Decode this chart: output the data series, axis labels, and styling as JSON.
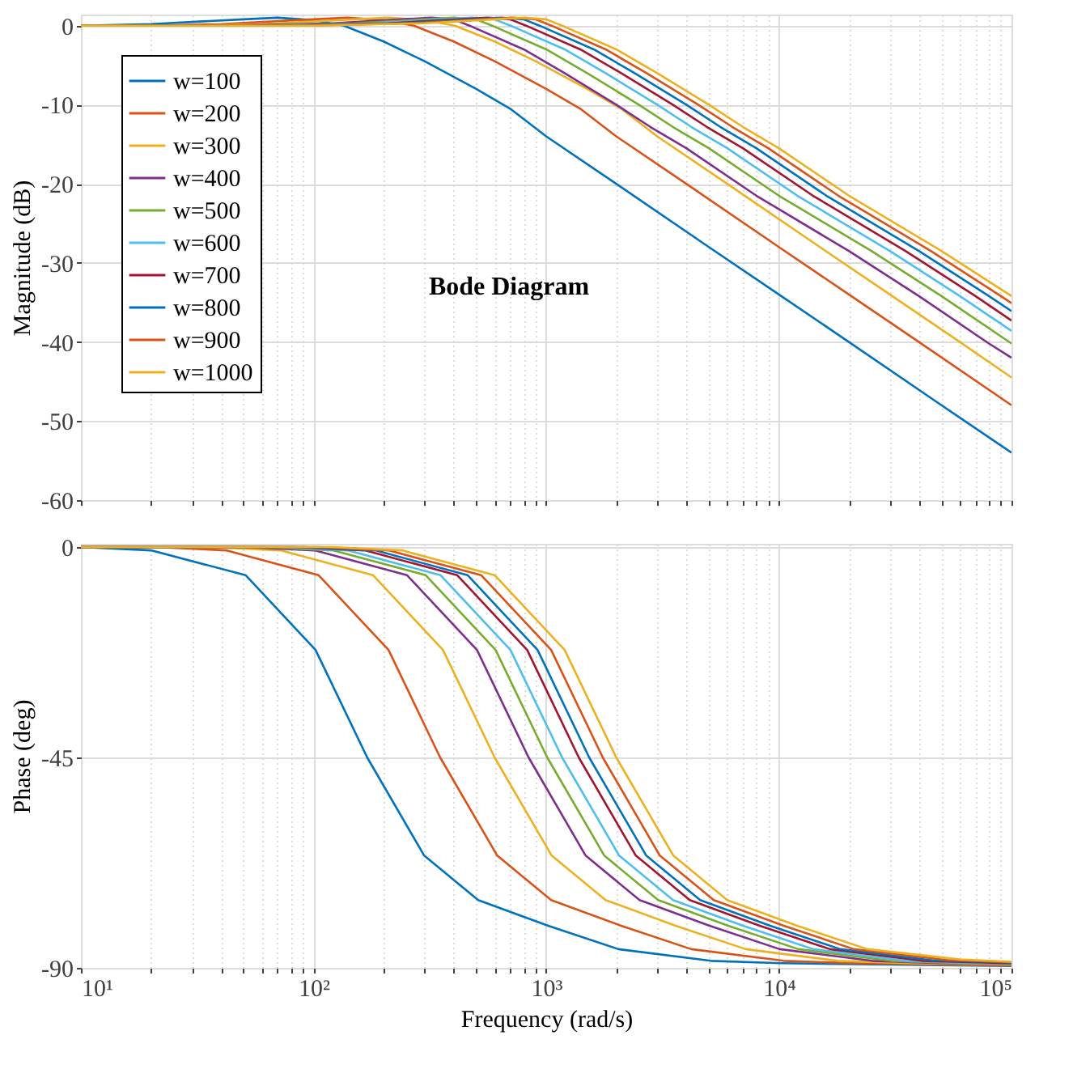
{
  "chart_data": [
    {
      "type": "line",
      "title": "Bode Diagram",
      "ylabel": "Magnitude (dB)",
      "legend": "top left",
      "grid": true,
      "tick_labels": "y",
      "xlim": [
        10,
        100000
      ],
      "ylim": [
        -60,
        1.4
      ],
      "log": "x",
      "xticks": [
        10,
        {
          "value": 20,
          "label": null
        },
        {
          "value": 30,
          "label": null
        },
        {
          "value": 40,
          "label": null
        },
        {
          "value": 50,
          "label": null
        },
        {
          "value": 60,
          "label": null
        },
        {
          "value": 70,
          "label": null
        },
        {
          "value": 80,
          "label": null
        },
        {
          "value": 90,
          "label": null
        },
        100,
        {
          "value": 200,
          "label": null
        },
        {
          "value": 300,
          "label": null
        },
        {
          "value": 400,
          "label": null
        },
        {
          "value": 500,
          "label": null
        },
        {
          "value": 600,
          "label": null
        },
        {
          "value": 700,
          "label": null
        },
        {
          "value": 800,
          "label": null
        },
        {
          "value": 900,
          "label": null
        },
        1000,
        {
          "value": 2000,
          "label": null
        },
        {
          "value": 3000,
          "label": null
        },
        {
          "value": 4000,
          "label": null
        },
        {
          "value": 5000,
          "label": null
        },
        {
          "value": 6000,
          "label": null
        },
        {
          "value": 7000,
          "label": null
        },
        {
          "value": 8000,
          "label": null
        },
        {
          "value": 9000,
          "label": null
        },
        10000,
        {
          "value": 20000,
          "label": null
        },
        {
          "value": 30000,
          "label": null
        },
        {
          "value": 40000,
          "label": null
        },
        {
          "value": 50000,
          "label": null
        },
        {
          "value": 60000,
          "label": null
        },
        {
          "value": 70000,
          "label": null
        },
        {
          "value": 80000,
          "label": null
        },
        {
          "value": 90000,
          "label": null
        },
        100000
      ],
      "yticks": [
        -60,
        -50,
        -40,
        -30,
        -20,
        -10,
        0
      ],
      "series": [
        {
          "name": "w=100",
          "color": "#0072bd",
          "x": [
            10,
            20,
            50,
            70,
            100,
            135,
            200,
            300,
            500,
            700,
            1000,
            2000,
            5000,
            10000,
            20000,
            50000,
            100000
          ],
          "values": [
            0,
            0.2,
            0.8,
            1.0,
            0.7,
            0,
            -2,
            -4.5,
            -8,
            -10.5,
            -14,
            -20,
            -28,
            -34,
            -40,
            -48,
            -54
          ]
        },
        {
          "name": "w=200",
          "color": "#d95319",
          "x": [
            10,
            20,
            40,
            100,
            140,
            200,
            270,
            400,
            600,
            1000,
            1400,
            2000,
            4000,
            10000,
            20000,
            40000,
            100000
          ],
          "values": [
            0,
            0,
            0.2,
            0.8,
            1.0,
            0.7,
            0,
            -2,
            -4.5,
            -8,
            -10.5,
            -14,
            -20,
            -28,
            -34,
            -40,
            -48
          ]
        },
        {
          "name": "w=300",
          "color": "#edb120",
          "x": [
            10,
            30,
            60,
            150,
            210,
            300,
            405,
            600,
            900,
            1500,
            2100,
            3000,
            6000,
            15000,
            30000,
            60000,
            100000
          ],
          "values": [
            0,
            0,
            0.2,
            0.8,
            1.0,
            0.7,
            0,
            -2,
            -4.5,
            -8,
            -10.5,
            -14,
            -20,
            -28,
            -34,
            -40,
            -44.5
          ]
        },
        {
          "name": "w=400",
          "color": "#7e2f8e",
          "x": [
            10,
            40,
            120,
            240,
            320,
            400,
            468,
            800,
            1200,
            2000,
            2800,
            4000,
            8000,
            20000,
            40000,
            80000,
            100000
          ],
          "values": [
            0,
            0,
            0.3,
            0.8,
            1.0,
            0.8,
            0,
            -3,
            -6,
            -10,
            -12.8,
            -15.5,
            -21.5,
            -28.5,
            -34.2,
            -40.2,
            -42
          ]
        },
        {
          "name": "w=500",
          "color": "#77ac30",
          "x": [
            10,
            50,
            150,
            300,
            400,
            500,
            585,
            1000,
            1500,
            2500,
            3500,
            5000,
            10000,
            25000,
            50000,
            100000
          ],
          "values": [
            0,
            0,
            0.3,
            0.8,
            1.0,
            0.8,
            0,
            -3,
            -6,
            -10,
            -12.8,
            -15.5,
            -21.5,
            -28.5,
            -34.2,
            -40.2
          ]
        },
        {
          "name": "w=600",
          "color": "#4dbeee",
          "x": [
            10,
            60,
            180,
            360,
            480,
            600,
            702,
            1200,
            1800,
            3000,
            4200,
            6000,
            12000,
            30000,
            60000,
            100000
          ],
          "values": [
            0,
            0,
            0.3,
            0.8,
            1.0,
            0.8,
            0,
            -3,
            -6,
            -10,
            -12.8,
            -15.5,
            -21.5,
            -28.5,
            -34.2,
            -38.6
          ]
        },
        {
          "name": "w=700",
          "color": "#a2142f",
          "x": [
            10,
            70,
            210,
            420,
            560,
            700,
            819,
            1400,
            2100,
            3500,
            4900,
            7000,
            14000,
            35000,
            70000,
            100000
          ],
          "values": [
            0,
            0,
            0.3,
            0.8,
            1.0,
            0.8,
            0,
            -3,
            -6,
            -10,
            -12.8,
            -15.5,
            -21.5,
            -28.5,
            -34.2,
            -37.3
          ]
        },
        {
          "name": "w=800",
          "color": "#0072bd",
          "x": [
            10,
            80,
            240,
            480,
            640,
            800,
            936,
            1600,
            2400,
            4000,
            5600,
            8000,
            16000,
            40000,
            80000,
            100000
          ],
          "values": [
            0,
            0,
            0.3,
            0.8,
            1.0,
            0.8,
            0,
            -3,
            -6,
            -10,
            -12.8,
            -15.5,
            -21.5,
            -28.5,
            -34.2,
            -36.1
          ]
        },
        {
          "name": "w=900",
          "color": "#d95319",
          "x": [
            10,
            90,
            270,
            540,
            720,
            900,
            1053,
            1800,
            2700,
            4500,
            6300,
            9000,
            18000,
            45000,
            90000,
            100000
          ],
          "values": [
            0,
            0,
            0.3,
            0.8,
            1.0,
            0.8,
            0,
            -3,
            -6,
            -10,
            -12.8,
            -15.5,
            -21.5,
            -28.5,
            -34.2,
            -35.1
          ]
        },
        {
          "name": "w=1000",
          "color": "#edb120",
          "x": [
            10,
            100,
            300,
            600,
            800,
            1000,
            1170,
            2000,
            3000,
            5000,
            7000,
            10000,
            20000,
            50000,
            100000
          ],
          "values": [
            0,
            0,
            0.3,
            0.8,
            1.0,
            0.8,
            0,
            -3,
            -6,
            -10,
            -12.8,
            -15.5,
            -21.5,
            -28.5,
            -34.2
          ]
        }
      ]
    },
    {
      "type": "line",
      "xlabel": "Frequency  (rad/s)",
      "ylabel": "Phase (deg)",
      "grid": true,
      "xlim": [
        10,
        100000
      ],
      "ylim": [
        -90,
        0.7
      ],
      "log": "x",
      "xticks": [
        {
          "value": 10,
          "label": "10¹"
        },
        {
          "value": 20,
          "label": null
        },
        {
          "value": 30,
          "label": null
        },
        {
          "value": 40,
          "label": null
        },
        {
          "value": 50,
          "label": null
        },
        {
          "value": 60,
          "label": null
        },
        {
          "value": 70,
          "label": null
        },
        {
          "value": 80,
          "label": null
        },
        {
          "value": 90,
          "label": null
        },
        {
          "value": 100,
          "label": "10²"
        },
        {
          "value": 200,
          "label": null
        },
        {
          "value": 300,
          "label": null
        },
        {
          "value": 400,
          "label": null
        },
        {
          "value": 500,
          "label": null
        },
        {
          "value": 600,
          "label": null
        },
        {
          "value": 700,
          "label": null
        },
        {
          "value": 800,
          "label": null
        },
        {
          "value": 900,
          "label": null
        },
        {
          "value": 1000,
          "label": "10³"
        },
        {
          "value": 2000,
          "label": null
        },
        {
          "value": 3000,
          "label": null
        },
        {
          "value": 4000,
          "label": null
        },
        {
          "value": 5000,
          "label": null
        },
        {
          "value": 6000,
          "label": null
        },
        {
          "value": 7000,
          "label": null
        },
        {
          "value": 8000,
          "label": null
        },
        {
          "value": 9000,
          "label": null
        },
        {
          "value": 10000,
          "label": "10⁴"
        },
        {
          "value": 20000,
          "label": null
        },
        {
          "value": 30000,
          "label": null
        },
        {
          "value": 40000,
          "label": null
        },
        {
          "value": 50000,
          "label": null
        },
        {
          "value": 60000,
          "label": null
        },
        {
          "value": 70000,
          "label": null
        },
        {
          "value": 80000,
          "label": null
        },
        {
          "value": 90000,
          "label": null
        },
        {
          "value": 100000,
          "label": "10⁵"
        }
      ],
      "yticks": [
        -90,
        -45,
        0
      ],
      "series": [
        {
          "color": "#0072bd",
          "x": [
            10,
            20,
            51,
            102,
            170,
            299,
            510,
            1020,
            2040,
            5100,
            10200,
            100000
          ],
          "values": [
            0,
            -0.7,
            -6,
            -22,
            -45,
            -66,
            -75.5,
            -81,
            -86,
            -88.5,
            -89,
            -89.6
          ]
        },
        {
          "color": "#d95319",
          "x": [
            10,
            21,
            42,
            105,
            210,
            350,
            616,
            1050,
            2100,
            4200,
            10500,
            21000,
            100000
          ],
          "values": [
            0,
            0,
            -0.7,
            -6,
            -22,
            -45,
            -66,
            -75.5,
            -81,
            -86,
            -88.5,
            -89,
            -89.5
          ]
        },
        {
          "color": "#edb120",
          "x": [
            10,
            36,
            72,
            180,
            360,
            600,
            1056,
            1800,
            3600,
            7200,
            18000,
            36000,
            100000
          ],
          "values": [
            0,
            0,
            -0.7,
            -6,
            -22,
            -45,
            -66,
            -75.5,
            -81,
            -86,
            -88.5,
            -89,
            -89.4
          ]
        },
        {
          "color": "#7e2f8e",
          "x": [
            10,
            50,
            101,
            252,
            504,
            840,
            1478,
            2520,
            5040,
            10080,
            25200,
            50400,
            100000
          ],
          "values": [
            0,
            0,
            -0.7,
            -6,
            -22,
            -45,
            -66,
            -75.5,
            -81,
            -86,
            -88.5,
            -89,
            -89.3
          ]
        },
        {
          "color": "#77ac30",
          "x": [
            10,
            61,
            121,
            303,
            606,
            1010,
            1778,
            3030,
            6060,
            12120,
            30300,
            60600,
            100000
          ],
          "values": [
            0,
            0,
            -0.7,
            -6,
            -22,
            -45,
            -66,
            -75.5,
            -81,
            -86,
            -88.5,
            -89,
            -89.2
          ]
        },
        {
          "color": "#4dbeee",
          "x": [
            10,
            70,
            140,
            351,
            702,
            1170,
            2059,
            3510,
            7020,
            14040,
            35100,
            70200,
            100000
          ],
          "values": [
            0,
            0,
            -0.7,
            -6,
            -22,
            -45,
            -66,
            -75.5,
            -81,
            -86,
            -88.5,
            -89,
            -89.1
          ]
        },
        {
          "color": "#a2142f",
          "x": [
            10,
            83,
            166,
            414,
            828,
            1380,
            2429,
            4140,
            8280,
            16560,
            41400,
            82800,
            100000
          ],
          "values": [
            0,
            0,
            -0.7,
            -6,
            -22,
            -45,
            -66,
            -75.5,
            -81,
            -86,
            -88.5,
            -88.9,
            -89
          ]
        },
        {
          "color": "#0072bd",
          "x": [
            10,
            92,
            184,
            459,
            918,
            1530,
            2693,
            4590,
            9180,
            18360,
            45900,
            91800,
            100000
          ],
          "values": [
            0,
            0,
            -0.7,
            -6,
            -22,
            -45,
            -66,
            -75.5,
            -81,
            -86,
            -88.4,
            -88.8,
            -88.9
          ]
        },
        {
          "color": "#d95319",
          "x": [
            10,
            105,
            210,
            525,
            1050,
            1750,
            3080,
            5250,
            10500,
            21000,
            52500,
            100000
          ],
          "values": [
            0,
            0,
            -0.7,
            -6,
            -22,
            -45,
            -66,
            -75.5,
            -81,
            -86,
            -88.3,
            -88.8
          ]
        },
        {
          "color": "#edb120",
          "x": [
            10,
            120,
            240,
            600,
            1200,
            2000,
            3520,
            6000,
            12000,
            24000,
            60000,
            100000
          ],
          "values": [
            0,
            0,
            -0.7,
            -6,
            -22,
            -45,
            -66,
            -75.5,
            -81,
            -86,
            -88.2,
            -88.7
          ]
        }
      ]
    }
  ]
}
